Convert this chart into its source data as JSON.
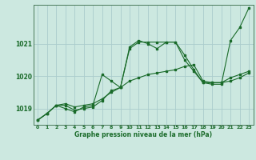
{
  "background_color": "#cce8e0",
  "grid_color": "#aacccc",
  "line_color": "#1a6b2a",
  "xlabel": "Graphe pression niveau de la mer (hPa)",
  "xlim": [
    -0.5,
    23.5
  ],
  "ylim": [
    1018.5,
    1022.2
  ],
  "yticks": [
    1019,
    1020,
    1021
  ],
  "xticks": [
    0,
    1,
    2,
    3,
    4,
    5,
    6,
    7,
    8,
    9,
    10,
    11,
    12,
    13,
    14,
    15,
    16,
    17,
    18,
    19,
    20,
    21,
    22,
    23
  ],
  "series": [
    {
      "x": [
        0,
        1,
        2,
        3,
        4,
        5,
        6,
        7,
        8,
        9,
        10,
        11,
        12,
        13,
        14,
        15,
        16,
        17,
        18,
        19,
        20,
        21,
        22,
        23
      ],
      "y": [
        1018.65,
        1018.85,
        1019.1,
        1019.1,
        1018.95,
        1019.0,
        1019.05,
        1019.25,
        1019.55,
        1019.65,
        1020.85,
        1021.05,
        1021.05,
        1021.05,
        1021.05,
        1021.05,
        1020.65,
        1020.2,
        1019.8,
        1019.75,
        1019.75,
        1021.1,
        1021.5,
        1022.1
      ]
    },
    {
      "x": [
        0,
        1,
        2,
        3,
        4,
        5,
        6,
        7,
        8,
        9,
        10,
        11,
        12,
        13,
        14,
        15,
        16,
        17,
        18,
        19,
        20,
        21,
        22,
        23
      ],
      "y": [
        1018.65,
        1018.85,
        1019.1,
        1019.0,
        1018.9,
        1019.05,
        1019.1,
        1020.05,
        1019.85,
        1019.65,
        1020.9,
        1021.1,
        1021.0,
        1020.85,
        1021.05,
        1021.05,
        1020.5,
        1020.15,
        1019.8,
        1019.8,
        1019.8,
        1019.85,
        1019.95,
        1020.1
      ]
    },
    {
      "x": [
        0,
        1,
        2,
        3,
        4,
        5,
        6,
        7,
        8,
        9,
        10,
        11,
        12,
        13,
        14,
        15,
        16,
        17,
        18,
        19,
        20,
        21,
        22,
        23
      ],
      "y": [
        1018.65,
        1018.85,
        1019.1,
        1019.15,
        1019.05,
        1019.1,
        1019.15,
        1019.3,
        1019.5,
        1019.65,
        1019.85,
        1019.95,
        1020.05,
        1020.1,
        1020.15,
        1020.2,
        1020.3,
        1020.35,
        1019.85,
        1019.8,
        1019.8,
        1019.95,
        1020.05,
        1020.15
      ]
    }
  ]
}
